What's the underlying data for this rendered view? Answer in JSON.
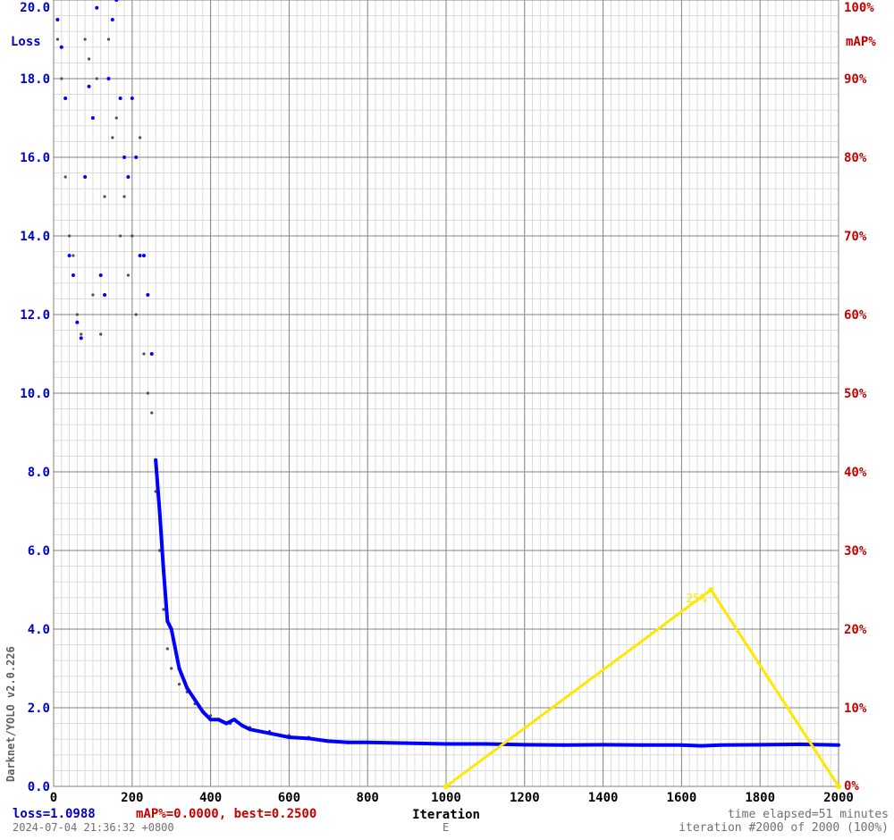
{
  "chart_data": {
    "type": "scatter",
    "ylabel_left": "Loss",
    "ylabel_right": "mAP%",
    "xlabel": "Iteration",
    "xlim": [
      0,
      2000
    ],
    "ylim_left": [
      0,
      20
    ],
    "ylim_right": [
      0,
      100
    ],
    "grid": true,
    "x_ticks": [
      "0",
      "200",
      "400",
      "600",
      "800",
      "1000",
      "1200",
      "1400",
      "1600",
      "1800",
      "2000"
    ],
    "y_ticks_left": [
      "0.0",
      "2.0",
      "4.0",
      "6.0",
      "8.0",
      "10.0",
      "12.0",
      "14.0",
      "16.0",
      "18.0",
      "20.0"
    ],
    "y_ticks_right": [
      "0%",
      "10%",
      "20%",
      "30%",
      "40%",
      "50%",
      "60%",
      "70%",
      "80%",
      "90%",
      "100%"
    ],
    "loss_series": {
      "color": "#0000ff",
      "x": [
        10,
        20,
        30,
        40,
        50,
        60,
        70,
        80,
        90,
        100,
        110,
        120,
        130,
        140,
        150,
        160,
        170,
        180,
        190,
        200,
        210,
        220,
        230,
        240,
        250,
        260,
        270,
        280,
        290,
        300,
        320,
        340,
        360,
        380,
        400,
        420,
        440,
        460,
        480,
        500,
        550,
        600,
        650,
        700,
        750,
        800,
        900,
        1000,
        1100,
        1200,
        1300,
        1400,
        1500,
        1600,
        1650,
        1700,
        1800,
        1900,
        2000
      ],
      "y": [
        19.5,
        18.8,
        17.5,
        13.5,
        13.0,
        11.8,
        11.4,
        15.5,
        17.8,
        17.0,
        19.8,
        13.0,
        12.5,
        18.0,
        19.5,
        20.0,
        17.5,
        16.0,
        15.5,
        17.5,
        16.0,
        13.5,
        13.5,
        12.5,
        11.0,
        8.3,
        7.0,
        5.5,
        4.2,
        4.0,
        3.0,
        2.5,
        2.2,
        1.9,
        1.7,
        1.7,
        1.6,
        1.7,
        1.55,
        1.45,
        1.35,
        1.25,
        1.22,
        1.15,
        1.12,
        1.12,
        1.1,
        1.08,
        1.08,
        1.06,
        1.05,
        1.06,
        1.05,
        1.05,
        1.03,
        1.05,
        1.06,
        1.07,
        1.05
      ]
    },
    "avg_loss_series": {
      "color": "#505050",
      "x": [
        10,
        20,
        30,
        40,
        50,
        60,
        70,
        80,
        90,
        100,
        110,
        120,
        130,
        140,
        150,
        160,
        170,
        180,
        190,
        200,
        210,
        220,
        230,
        240,
        250,
        260,
        270,
        280,
        290,
        300,
        320,
        340,
        360,
        380,
        400,
        450,
        500,
        550,
        600,
        650
      ],
      "y": [
        19.0,
        18.0,
        15.5,
        14.0,
        13.5,
        12.0,
        11.5,
        19.0,
        18.5,
        12.5,
        18.0,
        11.5,
        15.0,
        19.0,
        16.5,
        17.0,
        14.0,
        15.0,
        13.0,
        14.0,
        12.0,
        16.5,
        11.0,
        10.0,
        9.5,
        7.5,
        6.0,
        4.5,
        3.5,
        3.0,
        2.6,
        2.4,
        2.1,
        1.9,
        1.8,
        1.6,
        1.5,
        1.4,
        1.3,
        1.25
      ]
    },
    "map_series": {
      "color": "#ffe800",
      "x": [
        1000,
        1675,
        2000
      ],
      "y": [
        0,
        25,
        0
      ],
      "point_labels": [
        "",
        "25%",
        ""
      ]
    }
  },
  "footer": {
    "loss": "loss=1.0988",
    "map": "mAP%=0.0000, best=0.2500",
    "timestamp": "2024-07-04 21:36:32 +0800",
    "letter": "E",
    "time_elapsed": "time elapsed=51 minutes",
    "iteration": "iteration #2000 of 2000 (100%)"
  },
  "side_label": "Darknet/YOLO v2.0.226"
}
